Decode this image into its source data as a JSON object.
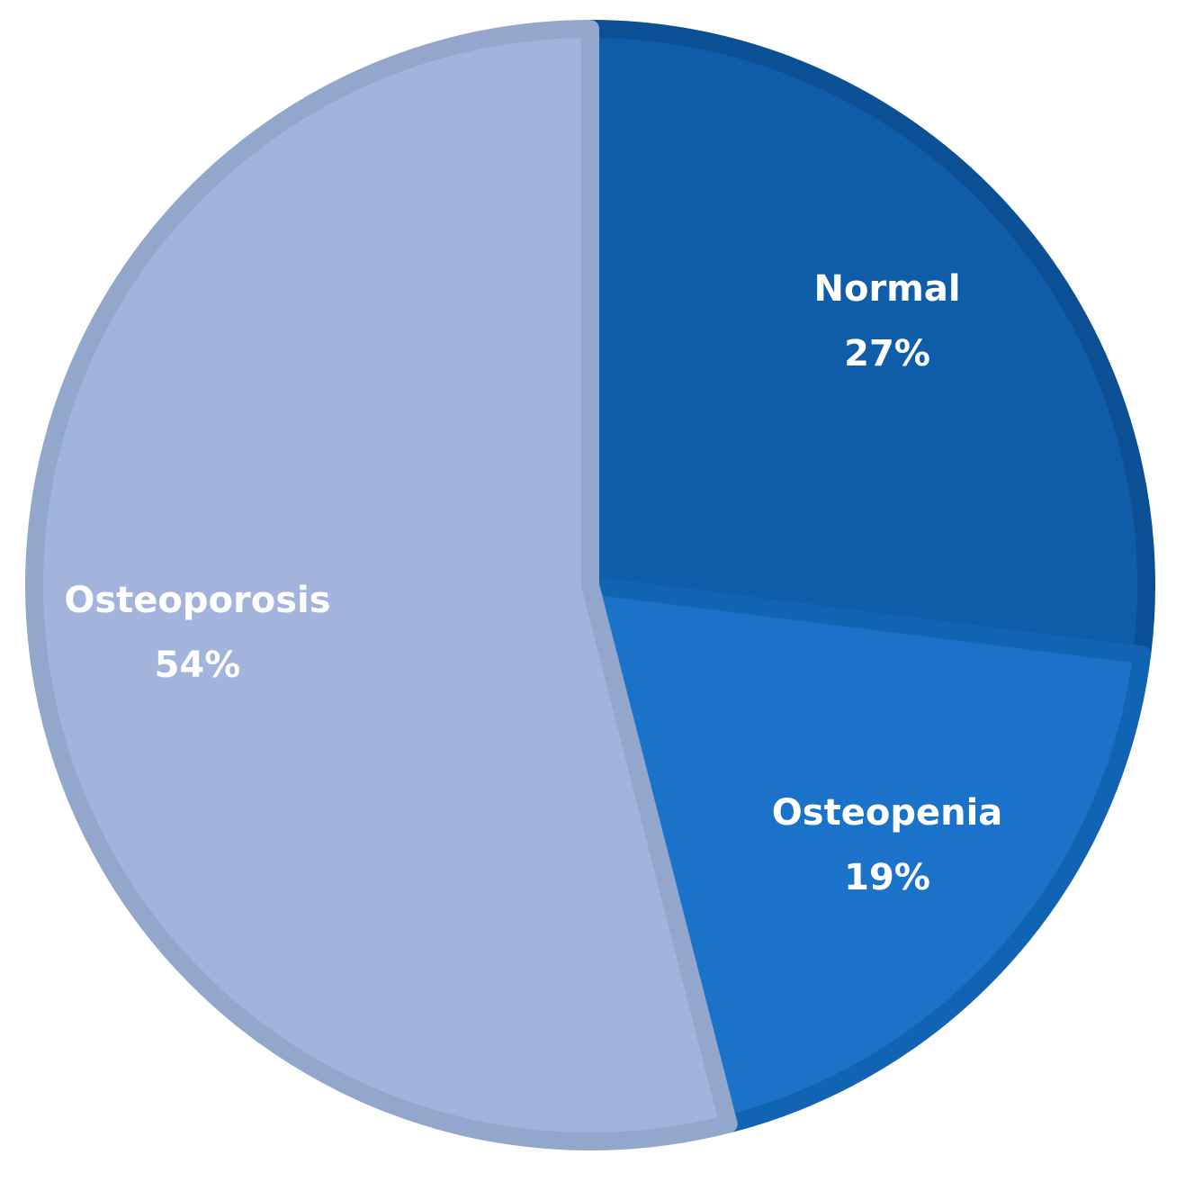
{
  "chart_data": {
    "type": "pie",
    "categories": [
      "Normal",
      "Osteopenia",
      "Osteoporosis"
    ],
    "values": [
      27,
      19,
      54
    ],
    "value_labels": [
      "27%",
      "19%",
      "54%"
    ],
    "colors": [
      "#0f5ca8",
      "#1a73c8",
      "#a2b4db"
    ],
    "edge_colors": [
      "#0b4f94",
      "#1163b4",
      "#93a6cb"
    ]
  }
}
